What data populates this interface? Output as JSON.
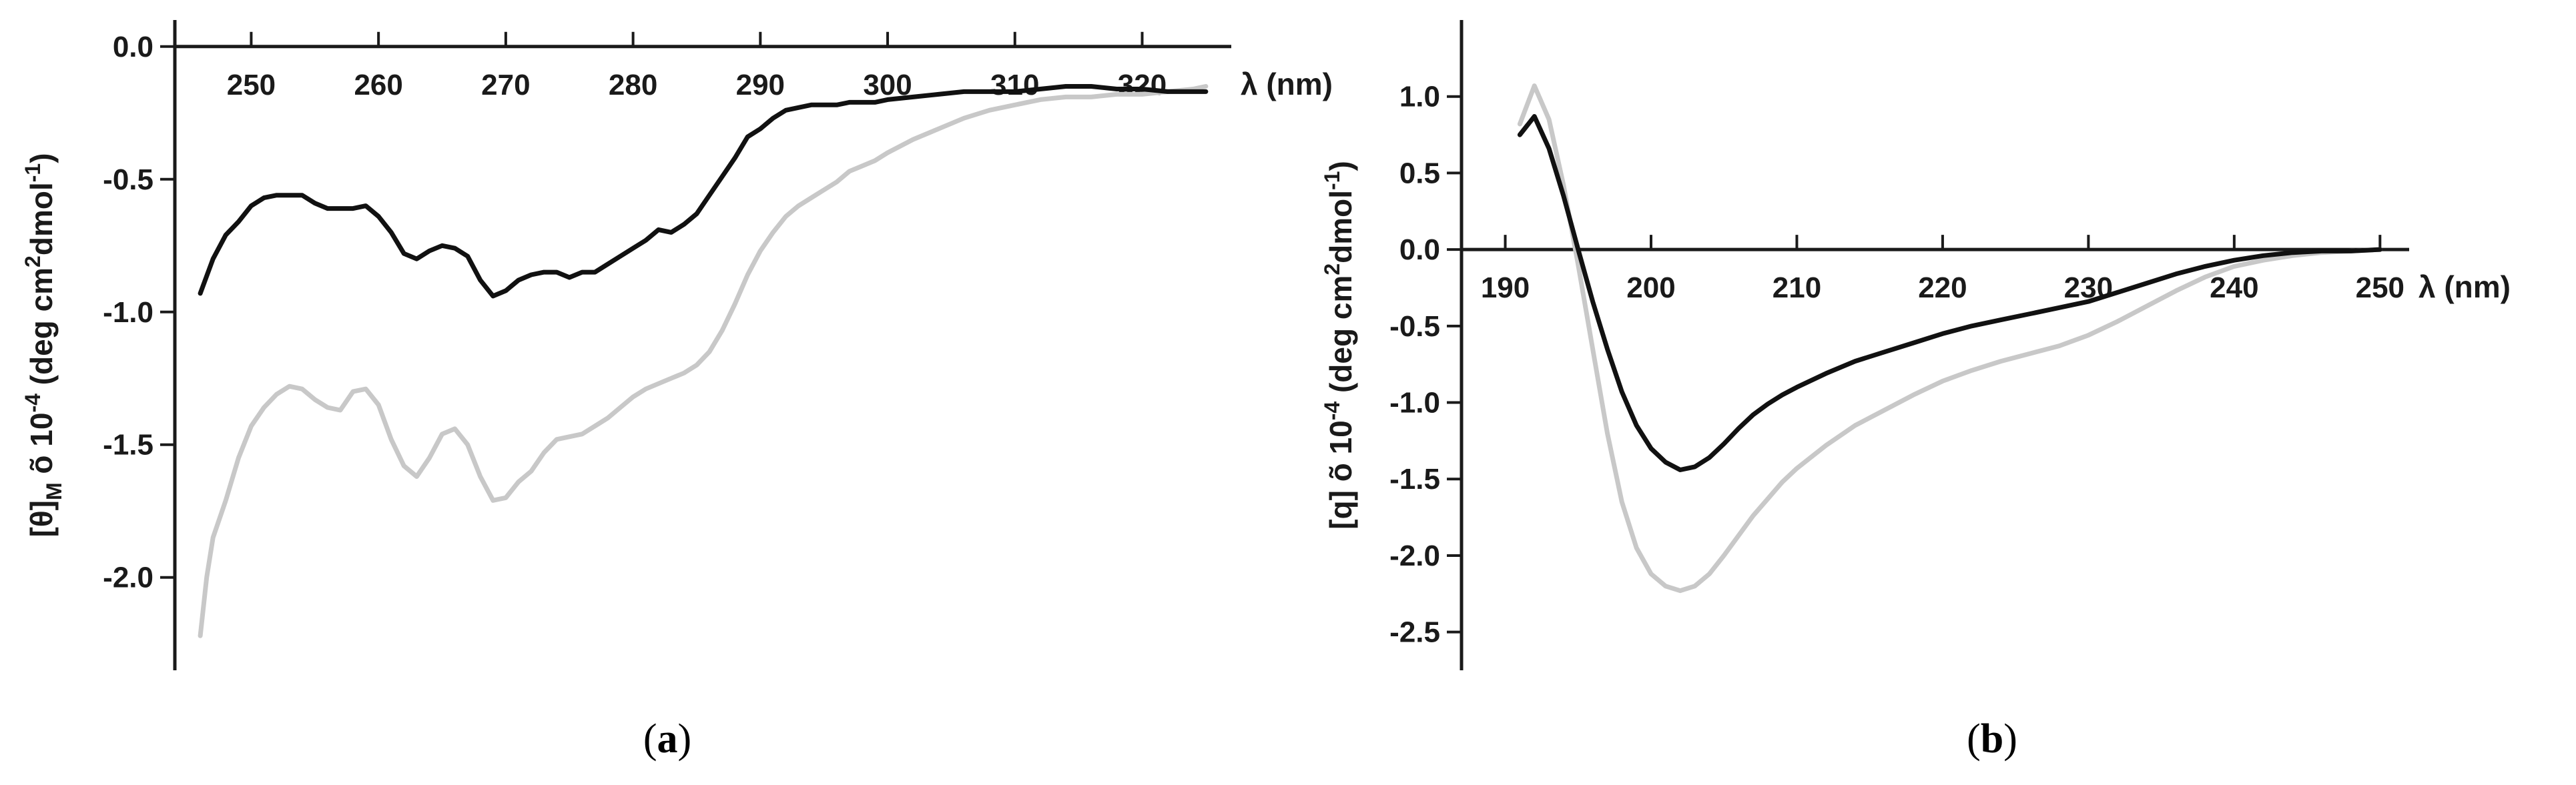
{
  "chart_data": [
    {
      "panel": "a",
      "panel_label": "a",
      "type": "line",
      "xlabel": "λ (nm)",
      "ylabel_main": "[θ]",
      "ylabel_sub": "M",
      "ylabel_mid": " õ 10",
      "ylabel_exp": "-4",
      "ylabel_unit": " (deg cm",
      "ylabel_unit_sup": "2",
      "ylabel_unit_tail": "dmol",
      "ylabel_unit_sup2": "-1",
      "ylabel_close": ")",
      "xlim": [
        244,
        327
      ],
      "ylim": [
        -2.35,
        0.1
      ],
      "xticks": [
        250,
        260,
        270,
        280,
        290,
        300,
        310,
        320
      ],
      "yticks": [
        0.0,
        -0.5,
        -1.0,
        -1.5,
        -2.0
      ],
      "ytick_labels": [
        "0.0",
        "-0.5",
        "-1.0",
        "-1.5",
        "-2.0"
      ],
      "x_axis_position": "top (at y = 0)",
      "grid": false,
      "series": [
        {
          "color": "#111111",
          "x": [
            246,
            247,
            248,
            249,
            250,
            251,
            252,
            253,
            254,
            255,
            256,
            257,
            258,
            259,
            260,
            261,
            262,
            263,
            264,
            265,
            266,
            267,
            268,
            269,
            270,
            271,
            272,
            273,
            274,
            275,
            276,
            277,
            278,
            279,
            280,
            281,
            282,
            283,
            284,
            285,
            286,
            287,
            288,
            289,
            290,
            291,
            292,
            293,
            294,
            295,
            296,
            297,
            298,
            299,
            300,
            302,
            304,
            306,
            308,
            310,
            312,
            314,
            316,
            318,
            320,
            322,
            324,
            325
          ],
          "y": [
            -0.93,
            -0.8,
            -0.71,
            -0.66,
            -0.6,
            -0.57,
            -0.56,
            -0.56,
            -0.56,
            -0.59,
            -0.61,
            -0.61,
            -0.61,
            -0.6,
            -0.64,
            -0.7,
            -0.78,
            -0.8,
            -0.77,
            -0.75,
            -0.76,
            -0.79,
            -0.88,
            -0.94,
            -0.92,
            -0.88,
            -0.86,
            -0.85,
            -0.85,
            -0.87,
            -0.85,
            -0.85,
            -0.82,
            -0.79,
            -0.76,
            -0.73,
            -0.69,
            -0.7,
            -0.67,
            -0.63,
            -0.56,
            -0.49,
            -0.42,
            -0.34,
            -0.31,
            -0.27,
            -0.24,
            -0.23,
            -0.22,
            -0.22,
            -0.22,
            -0.21,
            -0.21,
            -0.21,
            -0.2,
            -0.19,
            -0.18,
            -0.17,
            -0.17,
            -0.17,
            -0.16,
            -0.15,
            -0.15,
            -0.16,
            -0.16,
            -0.17,
            -0.17,
            -0.17
          ]
        },
        {
          "color": "#c8c8c8",
          "x": [
            246,
            246.5,
            247,
            248,
            249,
            250,
            251,
            252,
            253,
            254,
            255,
            256,
            257,
            258,
            259,
            260,
            261,
            262,
            263,
            264,
            265,
            266,
            267,
            268,
            269,
            270,
            271,
            272,
            273,
            274,
            275,
            276,
            277,
            278,
            279,
            280,
            281,
            282,
            283,
            284,
            285,
            286,
            287,
            288,
            289,
            290,
            291,
            292,
            293,
            294,
            295,
            296,
            297,
            298,
            299,
            300,
            302,
            304,
            306,
            308,
            310,
            312,
            314,
            316,
            318,
            320,
            322,
            324,
            325
          ],
          "y": [
            -2.22,
            -2.0,
            -1.85,
            -1.71,
            -1.55,
            -1.43,
            -1.36,
            -1.31,
            -1.28,
            -1.29,
            -1.33,
            -1.36,
            -1.37,
            -1.3,
            -1.29,
            -1.35,
            -1.48,
            -1.58,
            -1.62,
            -1.55,
            -1.46,
            -1.44,
            -1.5,
            -1.62,
            -1.71,
            -1.7,
            -1.64,
            -1.6,
            -1.53,
            -1.48,
            -1.47,
            -1.46,
            -1.43,
            -1.4,
            -1.36,
            -1.32,
            -1.29,
            -1.27,
            -1.25,
            -1.23,
            -1.2,
            -1.15,
            -1.07,
            -0.97,
            -0.86,
            -0.77,
            -0.7,
            -0.64,
            -0.6,
            -0.57,
            -0.54,
            -0.51,
            -0.47,
            -0.45,
            -0.43,
            -0.4,
            -0.35,
            -0.31,
            -0.27,
            -0.24,
            -0.22,
            -0.2,
            -0.19,
            -0.19,
            -0.18,
            -0.18,
            -0.17,
            -0.16,
            -0.15
          ]
        }
      ]
    },
    {
      "panel": "b",
      "panel_label": "b",
      "type": "line",
      "xlabel": "λ (nm)",
      "ylabel_main": "[q]",
      "ylabel_sub": "",
      "ylabel_mid": " õ 10",
      "ylabel_exp": "-4",
      "ylabel_unit": " (deg cm",
      "ylabel_unit_sup": "2",
      "ylabel_unit_tail": "dmol",
      "ylabel_unit_sup2": "-1",
      "ylabel_close": ")",
      "xlim": [
        187,
        252
      ],
      "ylim": [
        -2.75,
        1.5
      ],
      "xticks": [
        190,
        200,
        210,
        220,
        230,
        240,
        250
      ],
      "yticks": [
        1.0,
        0.5,
        0.0,
        -0.5,
        -1.0,
        -1.5,
        -2.0,
        -2.5
      ],
      "ytick_labels": [
        "1.0",
        "0.5",
        "0.0",
        "-0.5",
        "-1.0",
        "-1.5",
        "-2.0",
        "-2.5"
      ],
      "x_axis_position": "middle (at y = 0)",
      "grid": false,
      "series": [
        {
          "color": "#111111",
          "x": [
            191,
            192,
            193,
            194,
            195,
            196,
            197,
            198,
            199,
            200,
            201,
            202,
            203,
            204,
            205,
            206,
            207,
            208,
            209,
            210,
            212,
            214,
            216,
            218,
            220,
            222,
            224,
            226,
            228,
            230,
            232,
            234,
            236,
            238,
            240,
            242,
            244,
            246,
            248,
            250
          ],
          "y": [
            0.75,
            0.87,
            0.66,
            0.35,
            0.0,
            -0.34,
            -0.65,
            -0.93,
            -1.15,
            -1.3,
            -1.39,
            -1.44,
            -1.42,
            -1.36,
            -1.27,
            -1.17,
            -1.08,
            -1.01,
            -0.95,
            -0.9,
            -0.81,
            -0.73,
            -0.67,
            -0.61,
            -0.55,
            -0.5,
            -0.46,
            -0.42,
            -0.38,
            -0.34,
            -0.28,
            -0.22,
            -0.16,
            -0.11,
            -0.07,
            -0.04,
            -0.02,
            -0.01,
            -0.01,
            0.0
          ]
        },
        {
          "color": "#c8c8c8",
          "x": [
            191,
            192,
            193,
            194,
            195,
            196,
            197,
            198,
            199,
            200,
            201,
            202,
            203,
            204,
            205,
            206,
            207,
            208,
            209,
            210,
            212,
            214,
            216,
            218,
            220,
            222,
            224,
            226,
            228,
            230,
            232,
            234,
            236,
            238,
            240,
            242,
            244,
            246,
            248,
            250
          ],
          "y": [
            0.82,
            1.07,
            0.85,
            0.42,
            -0.1,
            -0.65,
            -1.2,
            -1.65,
            -1.95,
            -2.12,
            -2.2,
            -2.23,
            -2.2,
            -2.12,
            -2.0,
            -1.87,
            -1.74,
            -1.63,
            -1.52,
            -1.43,
            -1.28,
            -1.15,
            -1.05,
            -0.95,
            -0.86,
            -0.79,
            -0.73,
            -0.68,
            -0.63,
            -0.56,
            -0.47,
            -0.37,
            -0.27,
            -0.18,
            -0.11,
            -0.07,
            -0.04,
            -0.02,
            -0.01,
            0.0
          ]
        }
      ]
    }
  ]
}
